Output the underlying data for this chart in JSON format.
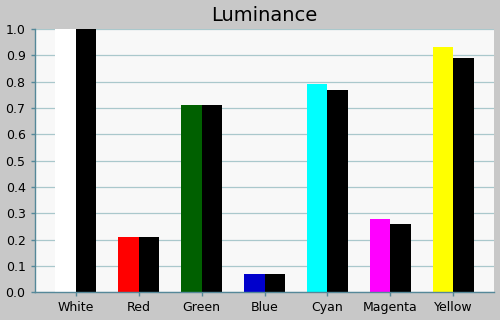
{
  "title": "Luminance",
  "categories": [
    "White",
    "Red",
    "Green",
    "Blue",
    "Cyan",
    "Magenta",
    "Yellow"
  ],
  "measured_values": [
    1.0,
    0.21,
    0.71,
    0.07,
    0.79,
    0.28,
    0.93
  ],
  "reference_values": [
    1.0,
    0.21,
    0.71,
    0.07,
    0.77,
    0.26,
    0.89
  ],
  "measured_colors": [
    "#ffffff",
    "#ff0000",
    "#006000",
    "#0000cc",
    "#00ffff",
    "#ff00ff",
    "#ffff00"
  ],
  "reference_color": "#000000",
  "ylim": [
    0.0,
    1.0
  ],
  "yticks": [
    0.0,
    0.1,
    0.2,
    0.3,
    0.4,
    0.5,
    0.6,
    0.7,
    0.8,
    0.9,
    1.0
  ],
  "background_color": "#c8c8c8",
  "plot_background": "#f8f8f8",
  "title_fontsize": 14,
  "bar_width": 0.32,
  "grid_color": "#aac8cc",
  "tick_color": "#558899",
  "spine_color": "#558899",
  "axis_label_fontsize": 9,
  "ylabel_fontsize": 9
}
